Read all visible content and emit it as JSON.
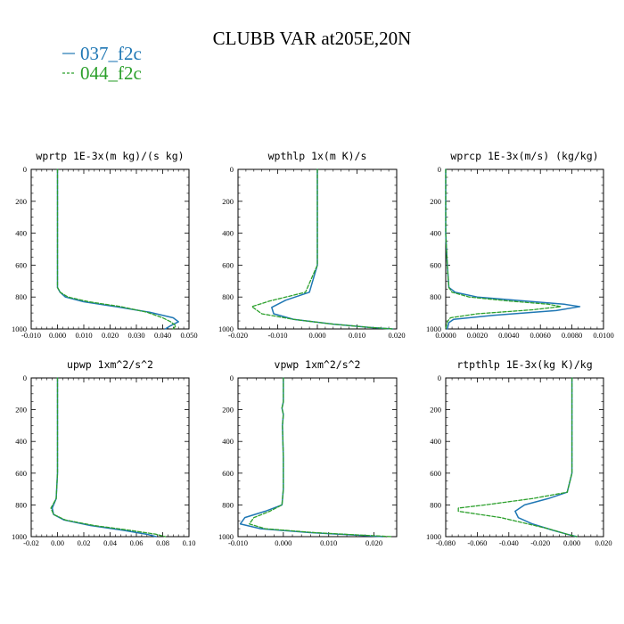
{
  "figure_title": "CLUBB VAR at205E,20N",
  "legend": [
    {
      "label": "037_f2c",
      "color": "#1f77b4",
      "dash": "solid"
    },
    {
      "label": "044_f2c",
      "color": "#2ca02c",
      "dash": "dashed"
    }
  ],
  "chart_data": [
    {
      "type": "line",
      "title": "wprtp  1E-3x(m kg)/(s kg)",
      "xlim": [
        -0.01,
        0.05
      ],
      "xticks": [
        -0.01,
        0.0,
        0.01,
        0.02,
        0.03,
        0.04,
        0.05
      ],
      "xtick_labels": [
        "-0.010",
        "0.000",
        "0.010",
        "0.020",
        "0.030",
        "0.040",
        "0.050"
      ],
      "ylim": [
        1000,
        0
      ],
      "yticks": [
        0,
        200,
        400,
        600,
        800,
        1000
      ],
      "series": [
        {
          "name": "037_f2c",
          "x": [
            0.0,
            0.0,
            0.0,
            0.0,
            0.0,
            0.001,
            0.003,
            0.01,
            0.022,
            0.035,
            0.044,
            0.046,
            0.043,
            0.041
          ],
          "y": [
            0,
            200,
            400,
            600,
            740,
            770,
            800,
            830,
            860,
            895,
            930,
            955,
            980,
            1000
          ]
        },
        {
          "name": "044_f2c",
          "x": [
            0.0,
            0.0,
            0.0,
            0.0,
            0.0,
            0.001,
            0.004,
            0.012,
            0.024,
            0.034,
            0.04,
            0.043,
            0.045,
            0.044
          ],
          "y": [
            0,
            200,
            400,
            600,
            740,
            770,
            800,
            830,
            860,
            895,
            930,
            955,
            980,
            1000
          ]
        }
      ]
    },
    {
      "type": "line",
      "title": "wpthlp  1x(m K)/s",
      "xlim": [
        -0.02,
        0.02
      ],
      "xticks": [
        -0.02,
        -0.01,
        0.0,
        0.01,
        0.02
      ],
      "xtick_labels": [
        "-0.020",
        "-0.010",
        "0.000",
        "0.010",
        "0.020"
      ],
      "ylim": [
        1000,
        0
      ],
      "yticks": [
        0,
        200,
        400,
        600,
        800,
        1000
      ],
      "series": [
        {
          "name": "037_f2c",
          "x": [
            0.0,
            0.0,
            0.0,
            0.0,
            -0.002,
            -0.008,
            -0.0115,
            -0.011,
            -0.006,
            0.004,
            0.013,
            0.019
          ],
          "y": [
            0,
            200,
            400,
            600,
            770,
            820,
            865,
            905,
            940,
            970,
            990,
            1000
          ]
        },
        {
          "name": "044_f2c",
          "x": [
            0.0,
            0.0,
            0.0,
            0.0,
            -0.003,
            -0.012,
            -0.0165,
            -0.014,
            -0.006,
            0.004,
            0.013,
            0.019
          ],
          "y": [
            0,
            200,
            400,
            600,
            770,
            825,
            860,
            905,
            940,
            970,
            990,
            1000
          ]
        }
      ]
    },
    {
      "type": "line",
      "title": "wprcp  1E-3x(m/s) (kg/kg)",
      "xlim": [
        0.0,
        0.01
      ],
      "xticks": [
        0.0,
        0.002,
        0.004,
        0.006,
        0.008,
        0.01
      ],
      "xtick_labels": [
        "0.0000",
        "0.0020",
        "0.0040",
        "0.0060",
        "0.0080",
        "0.0100"
      ],
      "ylim": [
        1000,
        0
      ],
      "yticks": [
        0,
        200,
        400,
        600,
        800,
        1000
      ],
      "series": [
        {
          "name": "037_f2c",
          "x": [
            0.0,
            0.0,
            0.0001,
            0.0002,
            0.0006,
            0.002,
            0.005,
            0.0075,
            0.0085,
            0.007,
            0.003,
            0.0005,
            0.0002,
            0.0001
          ],
          "y": [
            0,
            400,
            600,
            740,
            770,
            800,
            825,
            845,
            860,
            885,
            915,
            940,
            960,
            1000
          ]
        },
        {
          "name": "044_f2c",
          "x": [
            0.0,
            0.0,
            0.0001,
            0.0002,
            0.0004,
            0.0015,
            0.004,
            0.0065,
            0.0073,
            0.0055,
            0.002,
            0.0003,
            0.0001,
            0.0
          ],
          "y": [
            0,
            400,
            600,
            740,
            770,
            800,
            825,
            845,
            860,
            880,
            905,
            930,
            955,
            1000
          ]
        }
      ]
    },
    {
      "type": "line",
      "title": "upwp  1xm^2/s^2",
      "xlim": [
        -0.02,
        0.1
      ],
      "xticks": [
        -0.02,
        0.0,
        0.02,
        0.04,
        0.06,
        0.08,
        0.1
      ],
      "xtick_labels": [
        "-0.02",
        "0.00",
        "0.02",
        "0.04",
        "0.06",
        "0.08",
        "0.10"
      ],
      "ylim": [
        1000,
        0
      ],
      "yticks": [
        0,
        200,
        400,
        600,
        800,
        1000
      ],
      "series": [
        {
          "name": "037_f2c",
          "x": [
            0.0,
            0.0,
            0.0,
            0.0,
            -0.001,
            -0.004,
            -0.003,
            0.005,
            0.025,
            0.05,
            0.068,
            0.075
          ],
          "y": [
            0,
            200,
            400,
            600,
            760,
            820,
            860,
            895,
            930,
            960,
            985,
            1000
          ]
        },
        {
          "name": "044_f2c",
          "x": [
            0.0,
            0.0,
            0.0,
            0.0,
            -0.001,
            -0.005,
            -0.003,
            0.006,
            0.028,
            0.055,
            0.075,
            0.082
          ],
          "y": [
            0,
            200,
            400,
            600,
            760,
            820,
            860,
            895,
            930,
            960,
            985,
            1000
          ]
        }
      ]
    },
    {
      "type": "line",
      "title": "vpwp  1xm^2/s^2",
      "xlim": [
        -0.01,
        0.025
      ],
      "xticks": [
        -0.01,
        0.0,
        0.01,
        0.02
      ],
      "xtick_labels": [
        "-0.010",
        "0.000",
        "0.010",
        "0.020"
      ],
      "ylim": [
        1000,
        0
      ],
      "yticks": [
        0,
        200,
        400,
        600,
        800,
        1000
      ],
      "series": [
        {
          "name": "037_f2c",
          "x": [
            0.0,
            0.0,
            -0.0003,
            0.0,
            -0.0002,
            0.0,
            0.0,
            -0.0003,
            -0.004,
            -0.0085,
            -0.0095,
            -0.005,
            0.006,
            0.016,
            0.022
          ],
          "y": [
            0,
            150,
            190,
            230,
            300,
            500,
            700,
            800,
            840,
            880,
            920,
            950,
            975,
            990,
            1000
          ]
        },
        {
          "name": "044_f2c",
          "x": [
            0.0,
            0.0,
            -0.0003,
            0.0,
            -0.0002,
            0.0,
            0.0,
            -0.0003,
            -0.003,
            -0.0065,
            -0.0075,
            -0.004,
            0.007,
            0.017,
            0.024
          ],
          "y": [
            0,
            150,
            190,
            230,
            300,
            500,
            700,
            800,
            840,
            880,
            920,
            950,
            975,
            990,
            1000
          ]
        }
      ]
    },
    {
      "type": "line",
      "title": "rtpthlp  1E-3x(kg K)/kg",
      "xlim": [
        -0.08,
        0.02
      ],
      "xticks": [
        -0.08,
        -0.06,
        -0.04,
        -0.02,
        0.0,
        0.02
      ],
      "xtick_labels": [
        "-0.080",
        "-0.060",
        "-0.040",
        "-0.020",
        "0.000",
        "0.020"
      ],
      "ylim": [
        1000,
        0
      ],
      "yticks": [
        0,
        200,
        400,
        600,
        800,
        1000
      ],
      "series": [
        {
          "name": "037_f2c",
          "x": [
            0.0,
            0.0,
            0.0,
            0.0,
            -0.003,
            -0.015,
            -0.03,
            -0.036,
            -0.034,
            -0.025,
            -0.012,
            -0.003,
            0.003
          ],
          "y": [
            0,
            200,
            400,
            600,
            720,
            760,
            800,
            840,
            880,
            920,
            960,
            985,
            1000
          ]
        },
        {
          "name": "044_f2c",
          "x": [
            0.0,
            0.0,
            0.0,
            0.0,
            -0.003,
            -0.025,
            -0.055,
            -0.072,
            -0.072,
            -0.045,
            -0.015,
            -0.003,
            0.003
          ],
          "y": [
            0,
            200,
            400,
            600,
            720,
            760,
            800,
            820,
            840,
            880,
            950,
            985,
            1000
          ]
        }
      ]
    }
  ]
}
